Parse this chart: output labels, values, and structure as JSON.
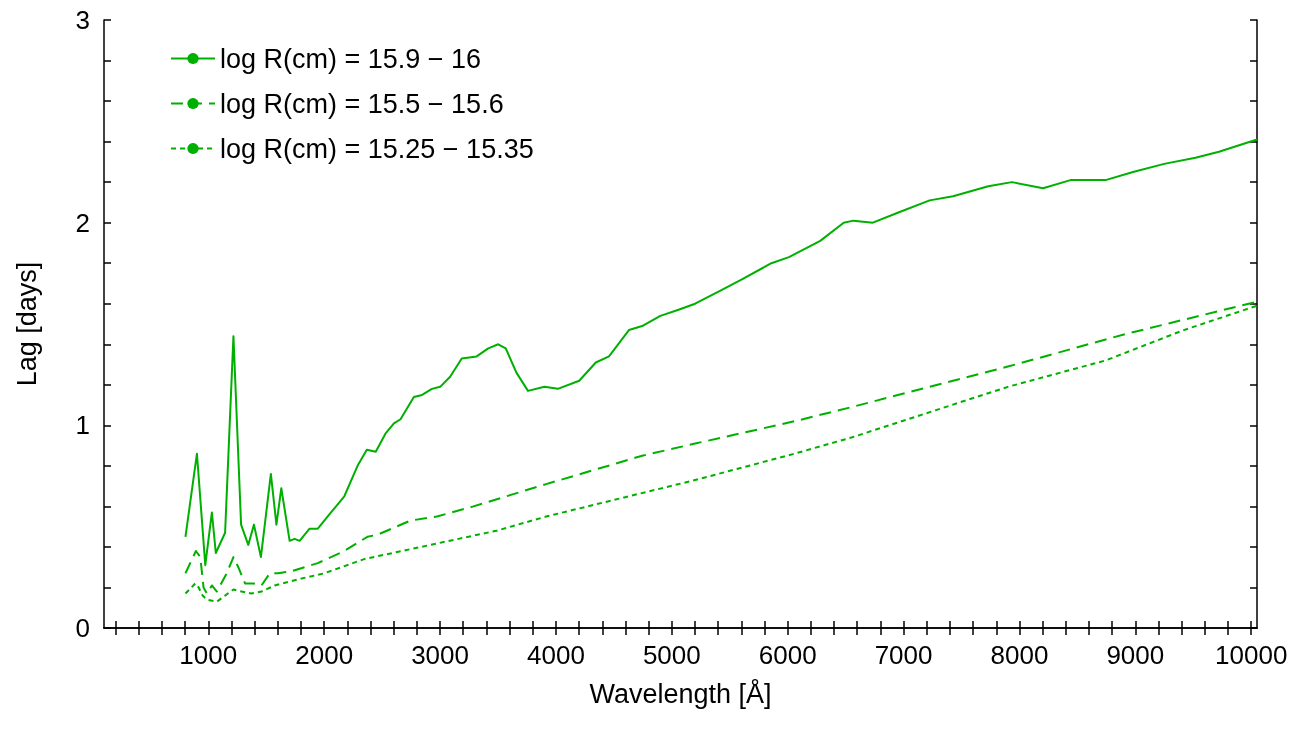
{
  "chart_data": {
    "type": "line",
    "xlabel": "Wavelength [Å]",
    "ylabel": "Lag [days]",
    "xlim": [
      100,
      10050
    ],
    "ylim": [
      0,
      3
    ],
    "xticks": [
      {
        "value": 200,
        "label": null
      },
      {
        "value": 400,
        "label": null
      },
      {
        "value": 600,
        "label": null
      },
      {
        "value": 800,
        "label": null
      },
      1000,
      {
        "value": 1200,
        "label": null
      },
      {
        "value": 1400,
        "label": null
      },
      {
        "value": 1600,
        "label": null
      },
      {
        "value": 1800,
        "label": null
      },
      2000,
      {
        "value": 2200,
        "label": null
      },
      {
        "value": 2400,
        "label": null
      },
      {
        "value": 2600,
        "label": null
      },
      {
        "value": 2800,
        "label": null
      },
      3000,
      {
        "value": 3200,
        "label": null
      },
      {
        "value": 3400,
        "label": null
      },
      {
        "value": 3600,
        "label": null
      },
      {
        "value": 3800,
        "label": null
      },
      4000,
      {
        "value": 4200,
        "label": null
      },
      {
        "value": 4400,
        "label": null
      },
      {
        "value": 4600,
        "label": null
      },
      {
        "value": 4800,
        "label": null
      },
      5000,
      {
        "value": 5200,
        "label": null
      },
      {
        "value": 5400,
        "label": null
      },
      {
        "value": 5600,
        "label": null
      },
      {
        "value": 5800,
        "label": null
      },
      6000,
      {
        "value": 6200,
        "label": null
      },
      {
        "value": 6400,
        "label": null
      },
      {
        "value": 6600,
        "label": null
      },
      {
        "value": 6800,
        "label": null
      },
      7000,
      {
        "value": 7200,
        "label": null
      },
      {
        "value": 7400,
        "label": null
      },
      {
        "value": 7600,
        "label": null
      },
      {
        "value": 7800,
        "label": null
      },
      8000,
      {
        "value": 8200,
        "label": null
      },
      {
        "value": 8400,
        "label": null
      },
      {
        "value": 8600,
        "label": null
      },
      {
        "value": 8800,
        "label": null
      },
      9000,
      {
        "value": 9200,
        "label": null
      },
      {
        "value": 9400,
        "label": null
      },
      {
        "value": 9600,
        "label": null
      },
      {
        "value": 9800,
        "label": null
      },
      10000
    ],
    "yticks": [
      0,
      {
        "value": 0.2,
        "label": null
      },
      {
        "value": 0.4,
        "label": null
      },
      {
        "value": 0.6,
        "label": null
      },
      {
        "value": 0.8,
        "label": null
      },
      1,
      {
        "value": 1.2,
        "label": null
      },
      {
        "value": 1.4,
        "label": null
      },
      {
        "value": 1.6,
        "label": null
      },
      {
        "value": 1.8,
        "label": null
      },
      2,
      {
        "value": 2.2,
        "label": null
      },
      {
        "value": 2.4,
        "label": null
      },
      {
        "value": 2.6,
        "label": null
      },
      {
        "value": 2.8,
        "label": null
      },
      3
    ],
    "grid": false,
    "legend": "top left",
    "marker": "none",
    "series": [
      {
        "name": "log R(cm) = 15.9 − 16",
        "color": "#00b000",
        "line_style": "solid",
        "x": [
          803,
          902,
          974,
          1031,
          1065,
          1145,
          1217,
          1283,
          1345,
          1394,
          1454,
          1540,
          1588,
          1630,
          1702,
          1745,
          1788,
          1874,
          1945,
          2059,
          2174,
          2288,
          2368,
          2445,
          2530,
          2602,
          2659,
          2774,
          2845,
          2930,
          3001,
          3087,
          3187,
          3316,
          3416,
          3502,
          3567,
          3659,
          3759,
          3901,
          4016,
          4201,
          4344,
          4458,
          4630,
          4744,
          4901,
          5058,
          5201,
          5403,
          5605,
          5859,
          6011,
          6281,
          6483,
          6567,
          6735,
          6955,
          7225,
          7427,
          7731,
          7934,
          8204,
          8440,
          8743,
          8980,
          9249,
          9519,
          9722,
          10050
        ],
        "values": [
          0.45,
          0.86,
          0.31,
          0.57,
          0.37,
          0.47,
          1.44,
          0.51,
          0.41,
          0.51,
          0.35,
          0.76,
          0.51,
          0.69,
          0.43,
          0.44,
          0.43,
          0.49,
          0.49,
          0.57,
          0.65,
          0.8,
          0.88,
          0.87,
          0.96,
          1.01,
          1.03,
          1.14,
          1.15,
          1.18,
          1.19,
          1.24,
          1.33,
          1.34,
          1.38,
          1.4,
          1.38,
          1.26,
          1.17,
          1.19,
          1.18,
          1.22,
          1.31,
          1.34,
          1.47,
          1.49,
          1.54,
          1.57,
          1.6,
          1.66,
          1.72,
          1.8,
          1.83,
          1.91,
          2,
          2.01,
          2,
          2.05,
          2.11,
          2.13,
          2.18,
          2.2,
          2.17,
          2.21,
          2.21,
          2.25,
          2.29,
          2.32,
          2.35,
          2.41
        ]
      },
      {
        "name": "log R(cm) = 15.5 − 15.6",
        "color": "#00b000",
        "line_style": "dashed",
        "x": [
          803,
          893,
          931,
          959,
          988,
          1031,
          1074,
          1159,
          1217,
          1259,
          1317,
          1388,
          1459,
          1531,
          1602,
          1716,
          1945,
          2174,
          2373,
          2459,
          2744,
          2973,
          3288,
          3573,
          3916,
          4744,
          5201,
          6058,
          6551,
          7900,
          8912,
          10050
        ],
        "values": [
          0.27,
          0.38,
          0.35,
          0.2,
          0.17,
          0.21,
          0.18,
          0.27,
          0.35,
          0.3,
          0.22,
          0.22,
          0.21,
          0.27,
          0.27,
          0.28,
          0.32,
          0.38,
          0.45,
          0.46,
          0.53,
          0.55,
          0.6,
          0.65,
          0.71,
          0.85,
          0.91,
          1.02,
          1.09,
          1.29,
          1.45,
          1.61
        ]
      },
      {
        "name": "log R(cm) = 15.25 − 15.35",
        "color": "#00b000",
        "line_style": "dotted",
        "x": [
          803,
          888,
          917,
          951,
          988,
          1074,
          1145,
          1217,
          1288,
          1373,
          1459,
          1574,
          1774,
          2002,
          2345,
          2916,
          3487,
          3916,
          4630,
          5201,
          6058,
          6551,
          7900,
          8743,
          9418,
          10050
        ],
        "values": [
          0.17,
          0.22,
          0.2,
          0.16,
          0.14,
          0.13,
          0.16,
          0.19,
          0.18,
          0.17,
          0.18,
          0.21,
          0.24,
          0.27,
          0.34,
          0.41,
          0.48,
          0.55,
          0.65,
          0.73,
          0.86,
          0.94,
          1.19,
          1.32,
          1.47,
          1.59
        ]
      }
    ]
  }
}
